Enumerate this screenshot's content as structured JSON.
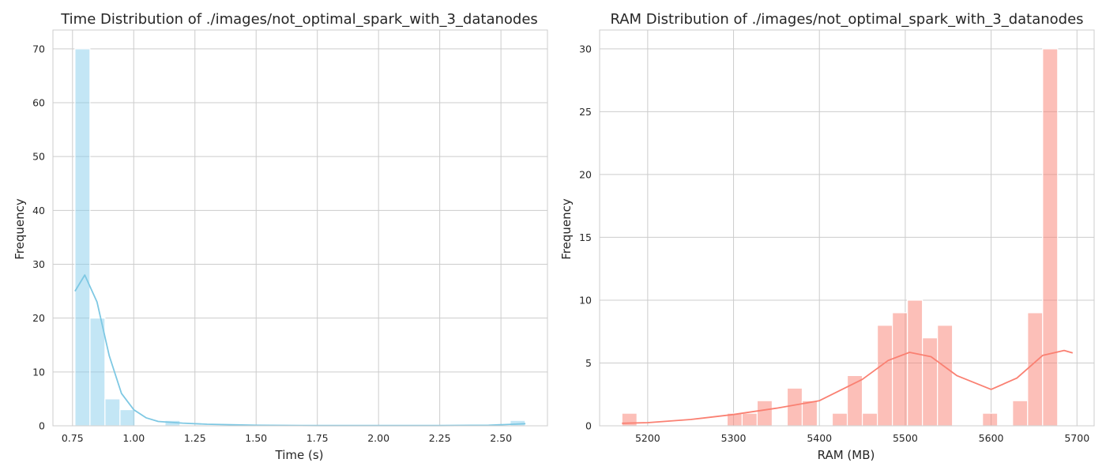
{
  "charts": [
    {
      "id": "time",
      "type": "bar",
      "title": "Time Distribution of ./images/not_optimal_spark_with_3_datanodes",
      "xlabel": "Time (s)",
      "ylabel": "Frequency",
      "xlim": [
        0.67,
        2.69
      ],
      "ylim": [
        0,
        73.5
      ],
      "xticks": [
        0.75,
        1.0,
        1.25,
        1.5,
        1.75,
        2.0,
        2.25,
        2.5
      ],
      "xtick_labels": [
        "0.75",
        "1.00",
        "1.25",
        "1.50",
        "1.75",
        "2.00",
        "2.25",
        "2.50"
      ],
      "yticks": [
        0,
        10,
        20,
        30,
        40,
        50,
        60,
        70
      ],
      "ytick_labels": [
        "0",
        "10",
        "20",
        "30",
        "40",
        "50",
        "60",
        "70"
      ],
      "bin_start": 0.76,
      "bin_width": 0.0613,
      "counts": [
        70,
        20,
        5,
        3,
        0,
        0,
        1,
        0,
        0,
        0,
        0,
        0,
        0,
        0,
        0,
        0,
        0,
        0,
        0,
        0,
        0,
        0,
        0,
        0,
        0,
        0,
        0,
        0,
        0,
        1
      ],
      "kde_x": [
        0.76,
        0.8,
        0.85,
        0.9,
        0.95,
        1.0,
        1.05,
        1.1,
        1.2,
        1.3,
        1.5,
        1.75,
        2.0,
        2.25,
        2.45,
        2.55,
        2.6
      ],
      "kde_y": [
        25,
        28,
        23,
        13,
        6,
        3,
        1.5,
        0.8,
        0.5,
        0.3,
        0.1,
        0.05,
        0.05,
        0.05,
        0.1,
        0.3,
        0.4
      ],
      "bar_color": "#87ceeb",
      "line_color": "#7ec8e3",
      "grid": true
    },
    {
      "id": "ram",
      "type": "bar",
      "title": "RAM Distribution of ./images/not_optimal_spark_with_3_datanodes",
      "xlabel": "RAM (MB)",
      "ylabel": "Frequency",
      "xlim": [
        5144,
        5720
      ],
      "ylim": [
        0,
        31.5
      ],
      "xticks": [
        5200,
        5300,
        5400,
        5500,
        5600,
        5700
      ],
      "xtick_labels": [
        "5200",
        "5300",
        "5400",
        "5500",
        "5600",
        "5700"
      ],
      "yticks": [
        0,
        5,
        10,
        15,
        20,
        25,
        30
      ],
      "ytick_labels": [
        "0",
        "5",
        "10",
        "15",
        "20",
        "25",
        "30"
      ],
      "bin_start": 5170,
      "bin_width": 17.5,
      "counts": [
        1,
        0,
        0,
        0,
        0,
        0,
        0,
        1,
        1,
        2,
        0,
        3,
        2,
        0,
        1,
        4,
        1,
        8,
        9,
        10,
        7,
        8,
        0,
        0,
        1,
        0,
        2,
        9,
        30
      ],
      "kde_x": [
        5170,
        5200,
        5250,
        5300,
        5350,
        5400,
        5450,
        5480,
        5505,
        5530,
        5560,
        5600,
        5630,
        5660,
        5685,
        5695
      ],
      "kde_y": [
        0.2,
        0.25,
        0.5,
        0.9,
        1.4,
        2.0,
        3.7,
        5.2,
        5.85,
        5.5,
        4.0,
        2.9,
        3.8,
        5.6,
        6.0,
        5.8
      ],
      "bar_color": "#fa8072",
      "line_color": "#fa8072",
      "grid": true
    }
  ]
}
